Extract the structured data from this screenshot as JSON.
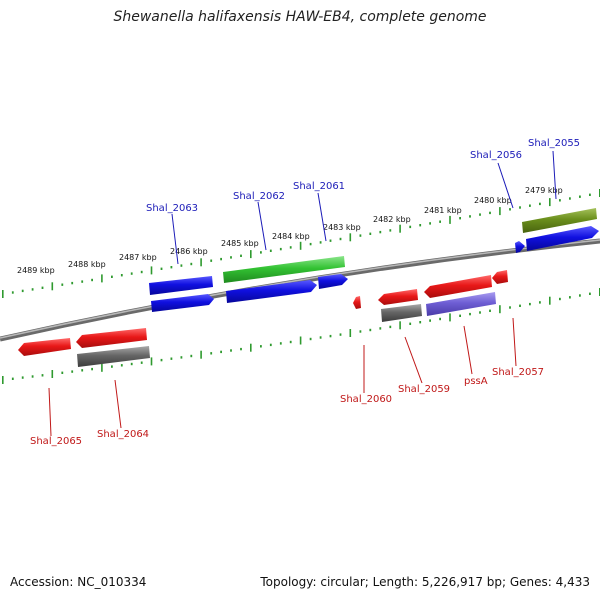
{
  "title": "Shewanella halifaxensis HAW-EB4, complete genome",
  "footer": {
    "accession": "Accession: NC_010334",
    "summary": "Topology: circular; Length: 5,226,917 bp; Genes: 4,433"
  },
  "colors": {
    "backbone": "#8a8a8a",
    "ruler": "#2f9a2f",
    "cds_red": "#e81818",
    "cds_blue": "#1010e0",
    "cds_green": "#33c233",
    "cds_olive": "#6b8f1c",
    "cds_grey": "#666666",
    "cds_lavender": "#6e5ed4",
    "label_fwd": "#1c1cb8",
    "label_rev": "#c01818"
  },
  "ruler": {
    "unit": "kbp",
    "positions": [
      2479,
      2480,
      2481,
      2482,
      2483,
      2484,
      2485,
      2486,
      2487,
      2488,
      2489
    ],
    "labels": [
      "2479 kbp",
      "2480 kbp",
      "2481 kbp",
      "2482 kbp",
      "2483 kbp",
      "2484 kbp",
      "2485 kbp",
      "2486 kbp",
      "2487 kbp",
      "2488 kbp",
      "2489 kbp"
    ]
  },
  "genes": {
    "forward_labels": [
      "Shal_2063",
      "Shal_2062",
      "Shal_2061",
      "Shal_2056",
      "Shal_2055"
    ],
    "reverse_labels": [
      "Shal_2065",
      "Shal_2064",
      "Shal_2060",
      "Shal_2059",
      "pssA",
      "Shal_2057"
    ]
  }
}
